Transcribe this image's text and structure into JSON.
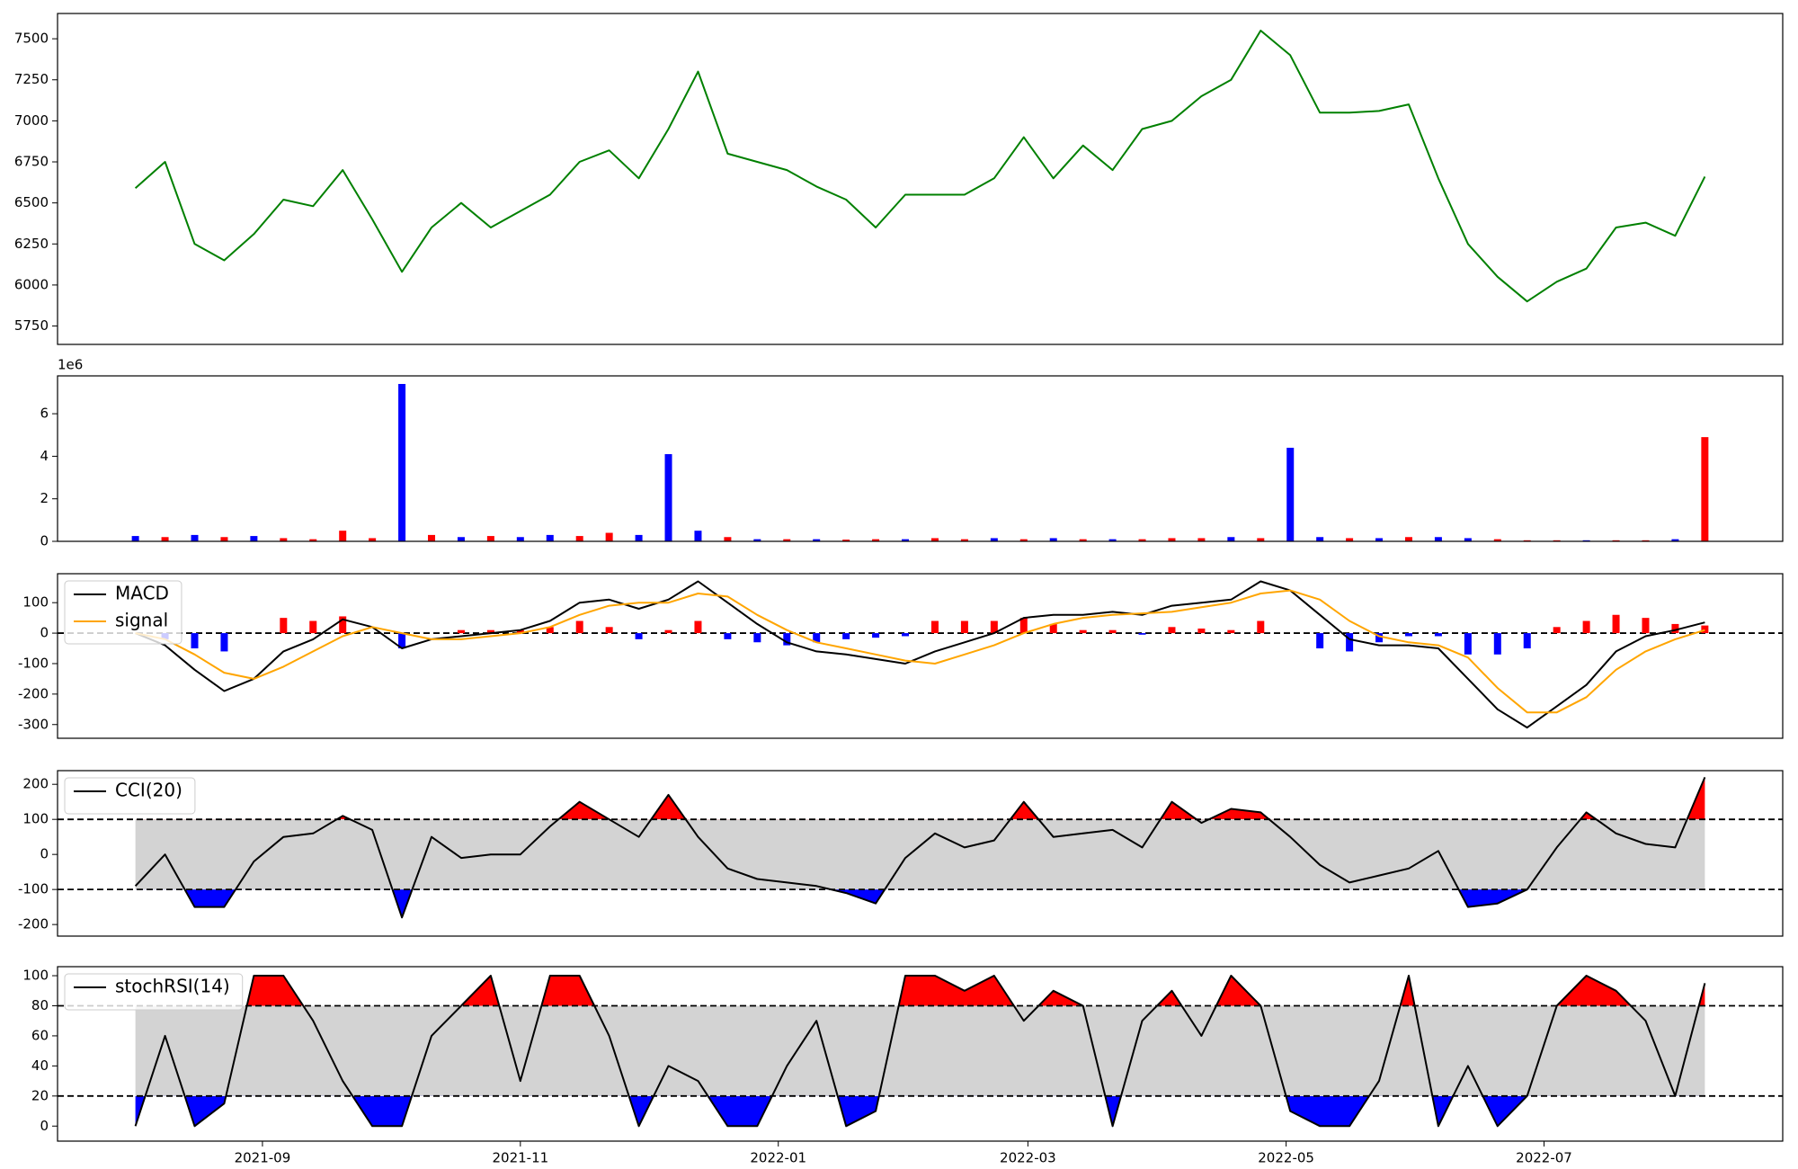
{
  "chart_data": [
    {
      "type": "line",
      "xlim": [
        -2.63,
        55.63
      ],
      "ylim": [
        5638,
        7654
      ],
      "yticks": [
        5750,
        6000,
        6250,
        6500,
        6750,
        7000,
        7250,
        7500
      ],
      "series": [
        {
          "color": "green",
          "values": [
            6590,
            6750,
            6250,
            6150,
            6310,
            6520,
            6480,
            6700,
            6400,
            6080,
            6350,
            6500,
            6350,
            6450,
            6550,
            6750,
            6820,
            6650,
            6950,
            7300,
            6800,
            6750,
            6700,
            6600,
            6520,
            6350,
            6550,
            6550,
            6550,
            6650,
            6900,
            6650,
            6850,
            6700,
            6950,
            7000,
            7150,
            7250,
            7550,
            7400,
            7050,
            7050,
            7060,
            7100,
            6650,
            6250,
            6050,
            5900,
            6020,
            6100,
            6350,
            6380,
            6300,
            6660
          ]
        }
      ]
    },
    {
      "type": "bar",
      "xlim": [
        -2.63,
        55.63
      ],
      "ylim": [
        0,
        7.78
      ],
      "yticks": [
        0,
        2,
        4,
        6
      ],
      "offset_label": "1e6",
      "series": [
        {
          "values": [
            0.25,
            0.2,
            0.3,
            0.2,
            0.25,
            0.15,
            0.1,
            0.5,
            0.15,
            7.4,
            0.3,
            0.2,
            0.25,
            0.2,
            0.3,
            0.25,
            0.4,
            0.3,
            4.1,
            0.5,
            0.2,
            0.1,
            0.1,
            0.1,
            0.08,
            0.1,
            0.1,
            0.15,
            0.1,
            0.15,
            0.1,
            0.15,
            0.1,
            0.1,
            0.1,
            0.15,
            0.15,
            0.2,
            0.15,
            4.4,
            0.2,
            0.15,
            0.15,
            0.2,
            0.2,
            0.15,
            0.1,
            0.05,
            0.05,
            0.05,
            0.05,
            0.05,
            0.1,
            4.9
          ],
          "colors": [
            "blue",
            "red",
            "blue",
            "red",
            "blue",
            "red",
            "red",
            "red",
            "red",
            "blue",
            "red",
            "blue",
            "red",
            "blue",
            "blue",
            "red",
            "red",
            "blue",
            "blue",
            "blue",
            "red",
            "blue",
            "red",
            "blue",
            "red",
            "red",
            "blue",
            "red",
            "red",
            "blue",
            "red",
            "blue",
            "red",
            "blue",
            "red",
            "red",
            "red",
            "blue",
            "red",
            "blue",
            "blue",
            "red",
            "blue",
            "red",
            "blue",
            "blue",
            "red",
            "red",
            "red",
            "blue",
            "red",
            "red",
            "blue",
            "red"
          ]
        }
      ]
    },
    {
      "type": "macd",
      "xlim": [
        -2.63,
        55.63
      ],
      "ylim": [
        -345,
        195
      ],
      "yticks": [
        -300,
        -200,
        -100,
        0,
        100
      ],
      "hline": 0,
      "legend": "upper left",
      "series": [
        {
          "name": "MACD",
          "color": "black",
          "values": [
            0,
            -40,
            -120,
            -190,
            -150,
            -60,
            -20,
            45,
            20,
            -50,
            -20,
            -10,
            0,
            10,
            40,
            100,
            110,
            80,
            110,
            170,
            100,
            30,
            -30,
            -60,
            -70,
            -85,
            -100,
            -60,
            -30,
            0,
            50,
            60,
            60,
            70,
            60,
            90,
            100,
            110,
            170,
            140,
            60,
            -20,
            -40,
            -40,
            -50,
            -150,
            -250,
            -310,
            -240,
            -170,
            -60,
            -10,
            10,
            35
          ]
        },
        {
          "name": "signal",
          "color": "orange",
          "values": [
            0,
            -20,
            -70,
            -130,
            -150,
            -110,
            -60,
            -10,
            20,
            0,
            -20,
            -20,
            -10,
            0,
            20,
            60,
            90,
            100,
            100,
            130,
            120,
            60,
            10,
            -30,
            -50,
            -70,
            -90,
            -100,
            -70,
            -40,
            0,
            30,
            50,
            60,
            65,
            70,
            85,
            100,
            130,
            140,
            110,
            40,
            -10,
            -30,
            -40,
            -80,
            -180,
            -260,
            -260,
            -210,
            -120,
            -60,
            -20,
            10
          ]
        },
        {
          "kind": "bar",
          "up_color": "red",
          "down_color": "blue",
          "values": [
            0,
            -20,
            -50,
            -60,
            0,
            50,
            40,
            55,
            0,
            -50,
            0,
            10,
            10,
            10,
            20,
            40,
            20,
            -20,
            10,
            40,
            -20,
            -30,
            -40,
            -30,
            -20,
            -15,
            -10,
            40,
            40,
            40,
            50,
            30,
            10,
            10,
            -5,
            20,
            15,
            10,
            40,
            0,
            -50,
            -60,
            -30,
            -10,
            -10,
            -70,
            -70,
            -50,
            20,
            40,
            60,
            50,
            30,
            25
          ]
        }
      ]
    },
    {
      "type": "oscillator",
      "xlim": [
        -2.63,
        55.63
      ],
      "ylim": [
        -233,
        239
      ],
      "yticks": [
        -200,
        -100,
        0,
        100,
        200
      ],
      "bands": [
        -100,
        100
      ],
      "band_color": "lightgray",
      "above_color": "red",
      "below_color": "blue",
      "legend": "upper left",
      "series": [
        {
          "name": "CCI(20)",
          "color": "black",
          "values": [
            -90,
            0,
            -150,
            -150,
            -20,
            50,
            60,
            110,
            70,
            -180,
            50,
            -10,
            0,
            0,
            80,
            150,
            100,
            50,
            170,
            50,
            -40,
            -70,
            -80,
            -90,
            -110,
            -140,
            -10,
            60,
            20,
            40,
            150,
            50,
            60,
            70,
            20,
            150,
            90,
            130,
            120,
            50,
            -30,
            -80,
            -60,
            -40,
            10,
            -150,
            -140,
            -100,
            20,
            120,
            60,
            30,
            20,
            220
          ]
        }
      ]
    },
    {
      "type": "oscillator",
      "xlim": [
        -2.63,
        55.63
      ],
      "ylim": [
        -10,
        106
      ],
      "yticks": [
        0,
        20,
        40,
        60,
        80,
        100
      ],
      "bands": [
        20,
        80
      ],
      "band_color": "lightgray",
      "above_color": "red",
      "below_color": "blue",
      "legend": "upper left",
      "xticks": [
        {
          "value": 4.29,
          "label": "2021-09"
        },
        {
          "value": 13.0,
          "label": "2021-11"
        },
        {
          "value": 21.71,
          "label": "2022-01"
        },
        {
          "value": 30.14,
          "label": "2022-03"
        },
        {
          "value": 38.86,
          "label": "2022-05"
        },
        {
          "value": 47.57,
          "label": "2022-07"
        }
      ],
      "series": [
        {
          "name": "stochRSI(14)",
          "color": "black",
          "values": [
            0,
            60,
            0,
            15,
            100,
            100,
            70,
            30,
            0,
            0,
            60,
            80,
            100,
            30,
            100,
            100,
            60,
            0,
            40,
            30,
            0,
            0,
            40,
            70,
            0,
            10,
            100,
            100,
            90,
            100,
            70,
            90,
            80,
            0,
            70,
            90,
            60,
            100,
            80,
            10,
            0,
            0,
            30,
            100,
            0,
            40,
            0,
            20,
            80,
            100,
            90,
            70,
            20,
            95
          ]
        }
      ]
    }
  ]
}
